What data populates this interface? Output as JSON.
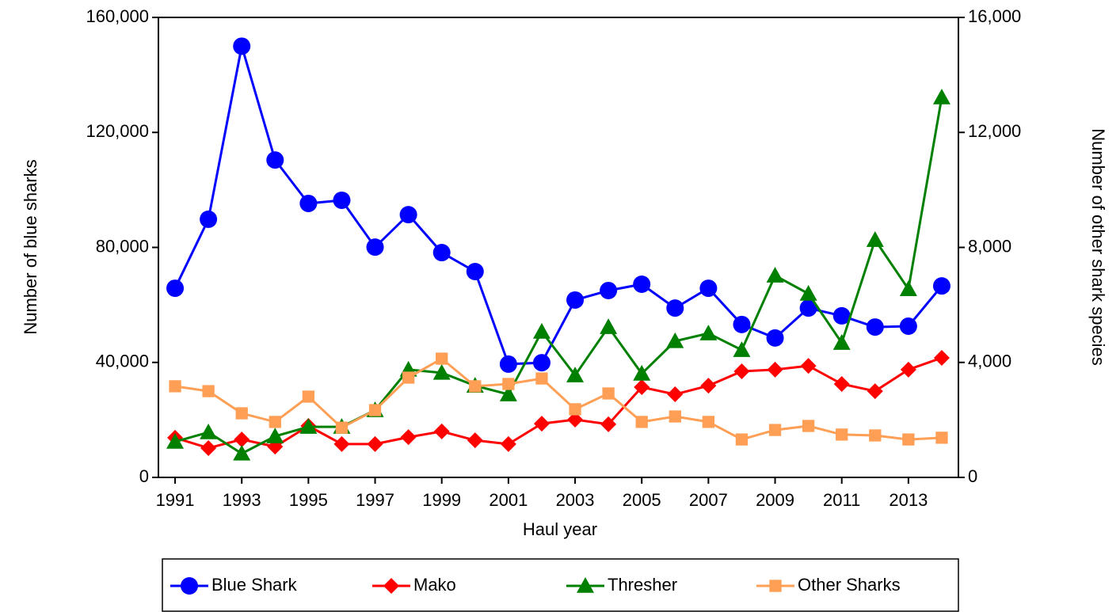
{
  "chart_data": {
    "type": "line",
    "x_label": "Haul year",
    "y_label": "Number of blue sharks",
    "y2_label": "Number of other shark species",
    "x": [
      1991,
      1992,
      1993,
      1994,
      1995,
      1996,
      1997,
      1998,
      1999,
      2000,
      2001,
      2002,
      2003,
      2004,
      2005,
      2006,
      2007,
      2008,
      2009,
      2010,
      2011,
      2012,
      2013,
      2014
    ],
    "xlim": [
      1990.5,
      2014.5
    ],
    "xticks": [
      1991,
      1993,
      1995,
      1997,
      1999,
      2001,
      2003,
      2005,
      2007,
      2009,
      2011,
      2013
    ],
    "ylim": [
      0,
      160000
    ],
    "yticks": [
      0,
      {
        "value": 40000,
        "label": "40,000"
      },
      {
        "value": 80000,
        "label": "80,000"
      },
      {
        "value": 120000,
        "label": "120,000"
      },
      {
        "value": 160000,
        "label": "160,000"
      }
    ],
    "y2lim": [
      0,
      16000
    ],
    "y2ticks": [
      0,
      {
        "value": 4000,
        "label": "4,000"
      },
      {
        "value": 8000,
        "label": "8,000"
      },
      {
        "value": 12000,
        "label": "12,000"
      },
      {
        "value": 16000,
        "label": "16,000"
      }
    ],
    "legend": "bottom",
    "series": [
      {
        "name": "Blue Shark",
        "color": "#0000ff",
        "marker": "circle",
        "axis": "y",
        "values": [
          65800,
          89800,
          150000,
          110400,
          95300,
          96400,
          80100,
          91400,
          78200,
          71600,
          39400,
          39900,
          61700,
          65000,
          67200,
          58900,
          65800,
          53200,
          48500,
          58900,
          56200,
          52300,
          52600,
          66600
        ]
      },
      {
        "name": "Mako",
        "color": "#ff0000",
        "marker": "diamond",
        "axis": "y2",
        "values": [
          1380,
          1020,
          1320,
          1070,
          1790,
          1160,
          1160,
          1400,
          1600,
          1290,
          1160,
          1870,
          2010,
          1850,
          3140,
          2890,
          3190,
          3690,
          3750,
          3880,
          3250,
          3000,
          3750,
          4160
        ]
      },
      {
        "name": "Thresher",
        "color": "#008000",
        "marker": "triangle",
        "axis": "y2",
        "values": [
          1240,
          1570,
          830,
          1430,
          1760,
          1760,
          2340,
          3750,
          3640,
          3190,
          2890,
          5070,
          3550,
          5230,
          3610,
          4740,
          5010,
          4430,
          7020,
          6390,
          4680,
          8260,
          6550,
          13220
        ]
      },
      {
        "name": "Other Sharks",
        "color": "#ff9f55",
        "marker": "square",
        "axis": "y2",
        "values": [
          3170,
          3000,
          2230,
          1930,
          2810,
          1730,
          2340,
          3470,
          4130,
          3170,
          3250,
          3440,
          2370,
          2920,
          1930,
          2120,
          1930,
          1320,
          1650,
          1790,
          1490,
          1460,
          1320,
          1380
        ]
      }
    ]
  }
}
